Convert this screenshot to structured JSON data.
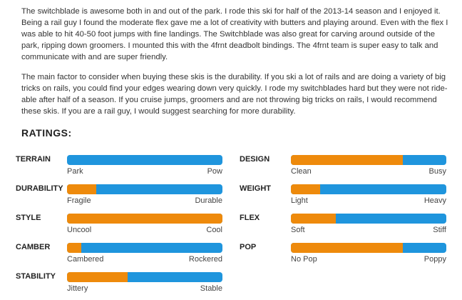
{
  "review": {
    "paragraphs": [
      "The switchblade is awesome both in and out of the park. I rode this ski for half of the 2013-14 season and I enjoyed it. Being a rail guy I found the moderate flex gave me a lot of creativity with butters and playing around. Even with the flex I was able to hit 40-50 foot jumps with fine landings. The Switchblade was also great for carving around outside of the park, ripping down groomers. I mounted this with the 4frnt deadbolt bindings. The 4frnt team is super easy to talk and communicate with and are super friendly.",
      "The main factor to consider when buying these skis is the durability. If you ski a lot of rails and are doing a variety of big tricks on rails, you could find your edges wearing down very quickly. I rode my switchblades hard but they were not ride-able after half of a season. If you cruise jumps, groomers and are not throwing big tricks on rails, I would recommend these skis. If you are a rail guy, I would suggest searching for more durability."
    ]
  },
  "ratings": {
    "title": "RATINGS:",
    "colors": {
      "fill": "#ee8a0c",
      "track": "#1f95dd"
    },
    "items": [
      {
        "label": "TERRAIN",
        "min": "Park",
        "max": "Pow",
        "value": 0.0
      },
      {
        "label": "DESIGN",
        "min": "Clean",
        "max": "Busy",
        "value": 0.72
      },
      {
        "label": "DURABILITY",
        "min": "Fragile",
        "max": "Durable",
        "value": 0.19
      },
      {
        "label": "WEIGHT",
        "min": "Light",
        "max": "Heavy",
        "value": 0.19
      },
      {
        "label": "STYLE",
        "min": "Uncool",
        "max": "Cool",
        "value": 1.0
      },
      {
        "label": "FLEX",
        "min": "Soft",
        "max": "Stiff",
        "value": 0.29
      },
      {
        "label": "CAMBER",
        "min": "Cambered",
        "max": "Rockered",
        "value": 0.09
      },
      {
        "label": "POP",
        "min": "No Pop",
        "max": "Poppy",
        "value": 0.72
      },
      {
        "label": "STABILITY",
        "min": "Jittery",
        "max": "Stable",
        "value": 0.39
      }
    ]
  }
}
